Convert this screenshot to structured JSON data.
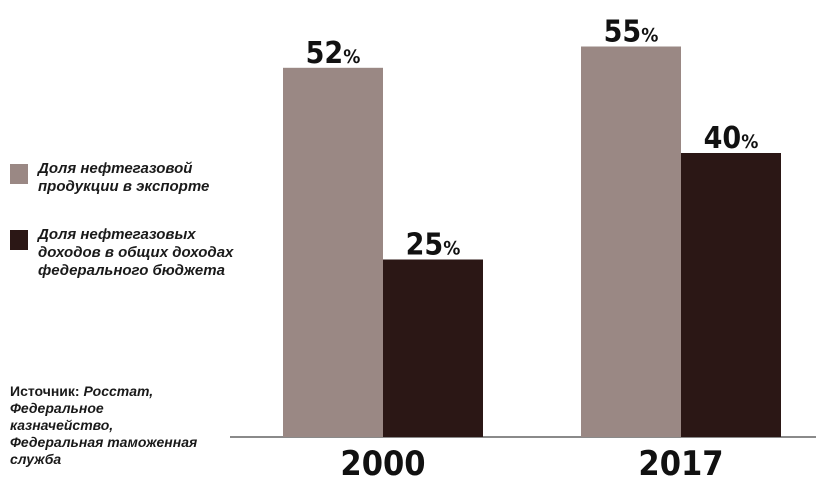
{
  "chart_data": {
    "type": "bar",
    "categories": [
      "2000",
      "2017"
    ],
    "series": [
      {
        "name": "Доля нефтегазовой продукции в экспорте",
        "values": [
          52,
          55
        ],
        "color": "#9a8884"
      },
      {
        "name": "Доля нефтегазовых доходов в общих доходах федерального бюджета",
        "values": [
          25,
          40
        ],
        "color": "#2b1715"
      }
    ],
    "value_suffix": "%",
    "ylim": [
      0,
      60
    ],
    "grid": false,
    "legend_position": "left"
  },
  "source": {
    "label": "Источник:",
    "text": "Росстат, Федеральное казначейство, Федеральная таможенная служба"
  }
}
